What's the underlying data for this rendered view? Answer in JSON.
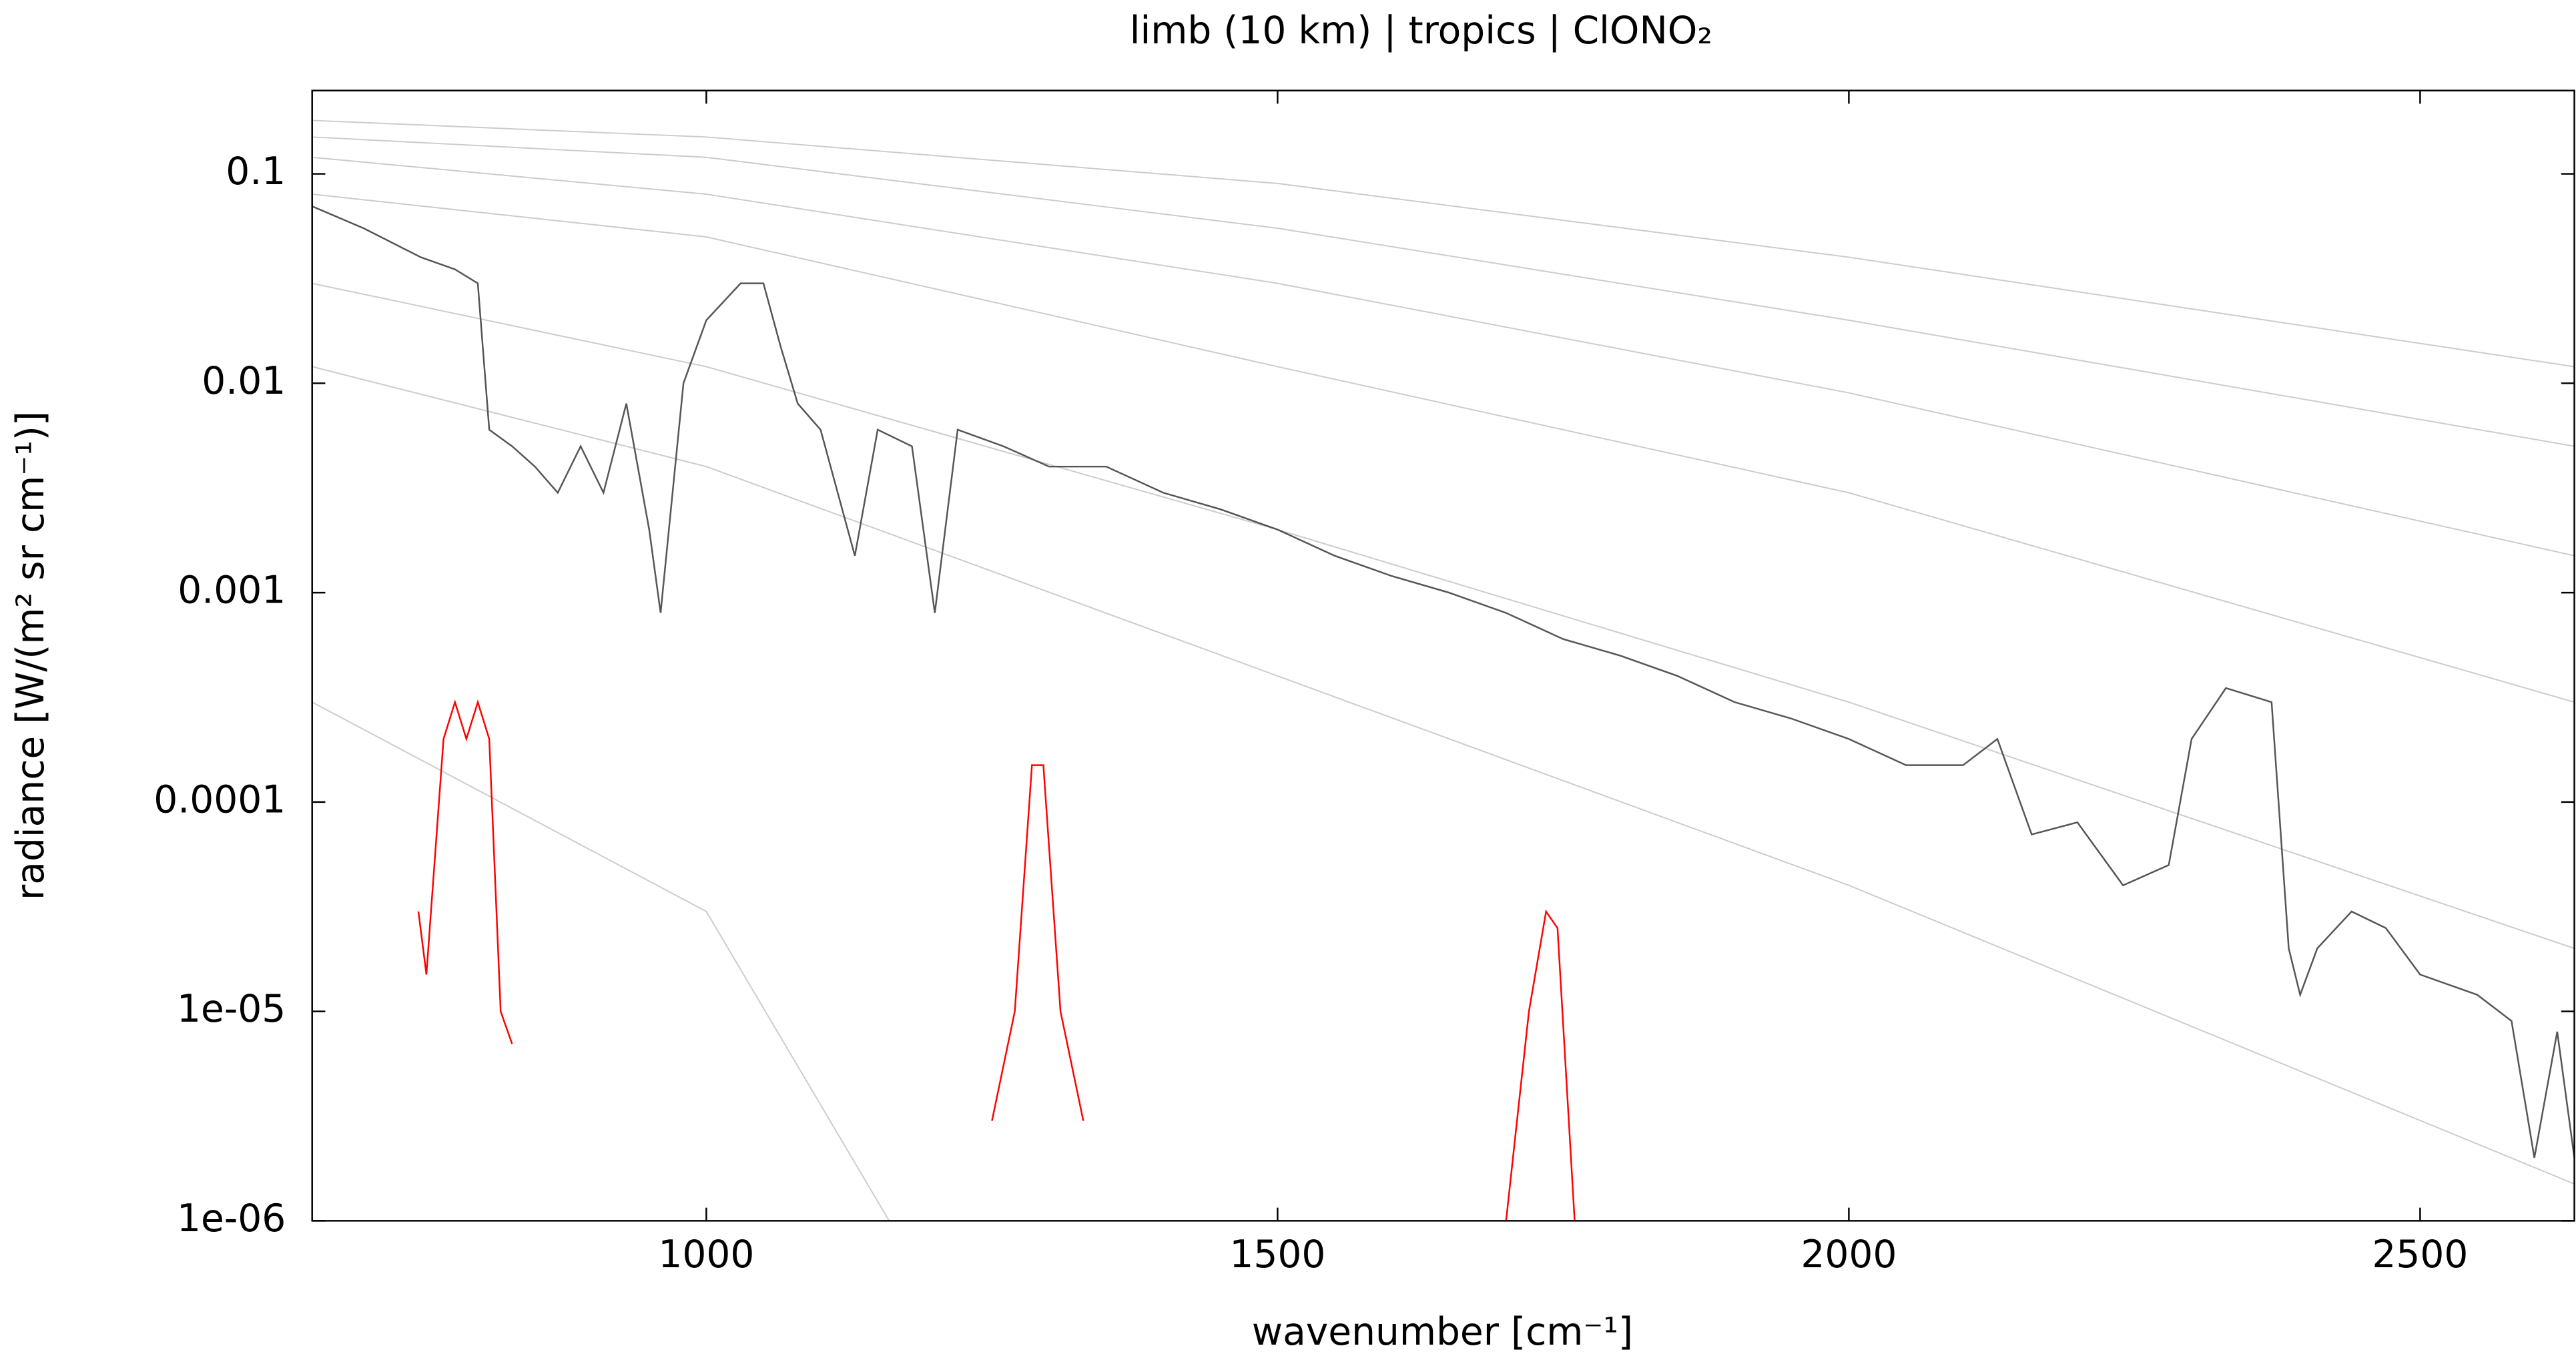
{
  "chart_data": {
    "type": "line",
    "title": "limb (10 km) | tropics | ClONO₂",
    "xlabel": "wavenumber [cm⁻¹]",
    "ylabel": "radiance [W/(m² sr cm⁻¹)]",
    "xlim": [
      655,
      2635
    ],
    "xticks": [
      1000,
      1500,
      2000,
      2500
    ],
    "ylim": [
      1e-06,
      0.25
    ],
    "ylog": true,
    "yticks": [
      0.1,
      0.01,
      0.001,
      0.0001,
      {
        "value": 1e-05,
        "label": "1e-05"
      },
      {
        "value": 1e-06,
        "label": "1e-06"
      }
    ],
    "series": [
      {
        "color": "#cccccc",
        "x": [
          655,
          1000,
          1500,
          2000,
          2635
        ],
        "values": [
          0.18,
          0.15,
          0.09,
          0.04,
          0.012
        ]
      },
      {
        "color": "#cccccc",
        "x": [
          655,
          1000,
          1500,
          2000,
          2635
        ],
        "values": [
          0.15,
          0.12,
          0.055,
          0.02,
          0.005
        ]
      },
      {
        "color": "#cccccc",
        "x": [
          655,
          1000,
          1500,
          2000,
          2635
        ],
        "values": [
          0.12,
          0.08,
          0.03,
          0.009,
          0.0015
        ]
      },
      {
        "color": "#cccccc",
        "x": [
          655,
          1000,
          1500,
          2000,
          2635
        ],
        "values": [
          0.08,
          0.05,
          0.012,
          0.003,
          0.0003
        ]
      },
      {
        "color": "#cccccc",
        "x": [
          655,
          1000,
          1500,
          2000,
          2635
        ],
        "values": [
          0.03,
          0.012,
          0.002,
          0.0003,
          2e-05
        ]
      },
      {
        "color": "#cccccc",
        "x": [
          655,
          1000,
          1500,
          2000,
          2635
        ],
        "values": [
          0.012,
          0.004,
          0.0004,
          4e-05,
          1.5e-06
        ]
      },
      {
        "color": "#cccccc",
        "x": [
          655,
          1000,
          1160
        ],
        "values": [
          0.0003,
          3e-05,
          1e-06
        ]
      },
      {
        "color": "#555555",
        "x": [
          655,
          700,
          750,
          780,
          800,
          810,
          830,
          850,
          870,
          890,
          910,
          930,
          950,
          960,
          980,
          1000,
          1030,
          1050,
          1065,
          1080,
          1100,
          1130,
          1150,
          1180,
          1200,
          1220,
          1260,
          1300,
          1350,
          1400,
          1450,
          1500,
          1550,
          1600,
          1650,
          1700,
          1750,
          1800,
          1850,
          1900,
          1950,
          2000,
          2050,
          2100,
          2130,
          2160,
          2200,
          2240,
          2280,
          2300,
          2330,
          2370,
          2385,
          2395,
          2410,
          2440,
          2470,
          2500,
          2550,
          2580,
          2600,
          2620,
          2635
        ],
        "values": [
          0.07,
          0.055,
          0.04,
          0.035,
          0.03,
          0.006,
          0.005,
          0.004,
          0.003,
          0.005,
          0.003,
          0.008,
          0.002,
          0.0008,
          0.01,
          0.02,
          0.03,
          0.03,
          0.015,
          0.008,
          0.006,
          0.0015,
          0.006,
          0.005,
          0.0008,
          0.006,
          0.005,
          0.004,
          0.004,
          0.003,
          0.0025,
          0.002,
          0.0015,
          0.0012,
          0.001,
          0.0008,
          0.0006,
          0.0005,
          0.0004,
          0.0003,
          0.00025,
          0.0002,
          0.00015,
          0.00015,
          0.0002,
          7e-05,
          8e-05,
          4e-05,
          5e-05,
          0.0002,
          0.00035,
          0.0003,
          2e-05,
          1.2e-05,
          2e-05,
          3e-05,
          2.5e-05,
          1.5e-05,
          1.2e-05,
          9e-06,
          2e-06,
          8e-06,
          2e-06
        ]
      },
      {
        "color": "#ff0000",
        "x": [
          748,
          755,
          770,
          780,
          790,
          800,
          810,
          820,
          830,
          1040,
          1250,
          1270,
          1285,
          1295,
          1310,
          1330,
          1500,
          1700,
          1720,
          1735,
          1745,
          1760
        ],
        "values": [
          3e-05,
          1.5e-05,
          0.0002,
          0.0003,
          0.0002,
          0.0003,
          0.0002,
          1e-05,
          7e-06,
          null,
          3e-06,
          1e-05,
          0.00015,
          0.00015,
          1e-05,
          3e-06,
          null,
          1e-06,
          1e-05,
          3e-05,
          2.5e-05,
          1e-06
        ]
      }
    ]
  }
}
